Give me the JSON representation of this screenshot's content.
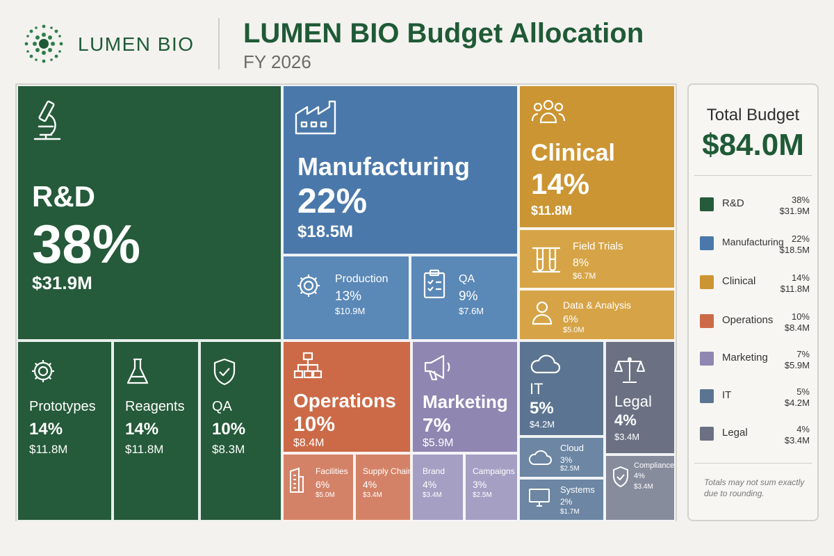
{
  "header": {
    "brand": "LUMEN BIO",
    "title": "LUMEN BIO Budget Allocation",
    "subtitle": "FY 2026"
  },
  "colors": {
    "rd": "#255a3a",
    "manufacturing": "#4a78aa",
    "clinical": "#cc9533",
    "operations": "#cc6a47",
    "marketing": "#8f86b2",
    "it": "#5b7491",
    "legal": "#6b7183",
    "brand_green": "#1f5a36"
  },
  "chart_data": {
    "type": "treemap",
    "title": "LUMEN BIO Budget Allocation",
    "subtitle": "FY 2026",
    "total": "$84.0M",
    "categories": [
      {
        "name": "R&D",
        "percent": 38,
        "amount": "$31.9M",
        "icon": "microscope-icon",
        "children": [
          {
            "name": "Prototypes",
            "percent": 14,
            "amount": "$11.8M",
            "icon": "gear-icon"
          },
          {
            "name": "Reagents",
            "percent": 14,
            "amount": "$11.8M",
            "icon": "flask-icon"
          },
          {
            "name": "QA",
            "percent": 10,
            "amount": "$8.3M",
            "icon": "shield-check-icon"
          }
        ]
      },
      {
        "name": "Manufacturing",
        "percent": 22,
        "amount": "$18.5M",
        "icon": "factory-icon",
        "children": [
          {
            "name": "Production",
            "percent": 13,
            "amount": "$10.9M",
            "icon": "gear-icon"
          },
          {
            "name": "QA",
            "percent": 9,
            "amount": "$7.6M",
            "icon": "clipboard-check-icon"
          }
        ]
      },
      {
        "name": "Clinical",
        "percent": 14,
        "amount": "$11.8M",
        "icon": "people-icon",
        "children": [
          {
            "name": "Field Trials",
            "percent": 8,
            "amount": "$6.7M",
            "icon": "test-tubes-icon"
          },
          {
            "name": "Data & Analysis",
            "percent": 6,
            "amount": "$5.0M",
            "icon": "person-icon"
          }
        ]
      },
      {
        "name": "Operations",
        "percent": 10,
        "amount": "$8.4M",
        "icon": "org-chart-icon",
        "children": [
          {
            "name": "Facilities",
            "percent": 6,
            "amount": "$5.0M",
            "icon": "building-icon"
          },
          {
            "name": "Supply Chain",
            "percent": 4,
            "amount": "$3.4M",
            "icon": ""
          }
        ]
      },
      {
        "name": "Marketing",
        "percent": 7,
        "amount": "$5.9M",
        "icon": "megaphone-icon",
        "children": [
          {
            "name": "Brand",
            "percent": 4,
            "amount": "$3.4M",
            "icon": ""
          },
          {
            "name": "Campaigns",
            "percent": 3,
            "amount": "$2.5M",
            "icon": ""
          }
        ]
      },
      {
        "name": "IT",
        "percent": 5,
        "amount": "$4.2M",
        "icon": "cloud-icon",
        "children": [
          {
            "name": "Cloud",
            "percent": 3,
            "amount": "$2.5M",
            "icon": "cloud-icon"
          },
          {
            "name": "Systems",
            "percent": 2,
            "amount": "$1.7M",
            "icon": "monitor-icon"
          }
        ]
      },
      {
        "name": "Legal",
        "percent": 4,
        "amount": "$3.4M",
        "icon": "scales-icon",
        "children": [
          {
            "name": "Compliance",
            "percent": 4,
            "amount": "$3.4M",
            "icon": "shield-check-icon"
          }
        ]
      }
    ]
  },
  "tiles": {
    "rd": {
      "label": "R&D",
      "pct": "38%",
      "amt": "$31.9M"
    },
    "prototypes": {
      "label": "Prototypes",
      "pct": "14%",
      "amt": "$11.8M"
    },
    "reagents": {
      "label": "Reagents",
      "pct": "14%",
      "amt": "$11.8M"
    },
    "rd_qa": {
      "label": "QA",
      "pct": "10%",
      "amt": "$8.3M"
    },
    "manufacturing": {
      "label": "Manufacturing",
      "pct": "22%",
      "amt": "$18.5M"
    },
    "production": {
      "label": "Production",
      "pct": "13%",
      "amt": "$10.9M"
    },
    "mfg_qa": {
      "label": "QA",
      "pct": "9%",
      "amt": "$7.6M"
    },
    "clinical": {
      "label": "Clinical",
      "pct": "14%",
      "amt": "$11.8M"
    },
    "field_trials": {
      "label": "Field Trials",
      "pct": "8%",
      "amt": "$6.7M"
    },
    "data_analysis": {
      "label": "Data & Analysis",
      "pct": "6%",
      "amt": "$5.0M"
    },
    "operations": {
      "label": "Operations",
      "pct": "10%",
      "amt": "$8.4M"
    },
    "facilities": {
      "label": "Facilities",
      "pct": "6%",
      "amt": "$5.0M"
    },
    "supply_chain": {
      "label": "Supply Chain",
      "pct": "4%",
      "amt": "$3.4M"
    },
    "marketing": {
      "label": "Marketing",
      "pct": "7%",
      "amt": "$5.9M"
    },
    "brand": {
      "label": "Brand",
      "pct": "4%",
      "amt": "$3.4M"
    },
    "campaigns": {
      "label": "Campaigns",
      "pct": "3%",
      "amt": "$2.5M"
    },
    "it": {
      "label": "IT",
      "pct": "5%",
      "amt": "$4.2M"
    },
    "cloud": {
      "label": "Cloud",
      "pct": "3%",
      "amt": "$2.5M"
    },
    "systems": {
      "label": "Systems",
      "pct": "2%",
      "amt": "$1.7M"
    },
    "legal": {
      "label": "Legal",
      "pct": "4%",
      "amt": "$3.4M"
    },
    "compliance": {
      "label": "Compliance",
      "pct": "4%",
      "amt": "$3.4M"
    }
  },
  "sidebar": {
    "title": "Total Budget",
    "total": "$84.0M",
    "legend": [
      {
        "name": "R&D",
        "pct": "38%",
        "amt": "$31.9M"
      },
      {
        "name": "Manufacturing",
        "pct": "22%",
        "amt": "$18.5M"
      },
      {
        "name": "Clinical",
        "pct": "14%",
        "amt": "$11.8M"
      },
      {
        "name": "Operations",
        "pct": "10%",
        "amt": "$8.4M"
      },
      {
        "name": "Marketing",
        "pct": "7%",
        "amt": "$5.9M"
      },
      {
        "name": "IT",
        "pct": "5%",
        "amt": "$4.2M"
      },
      {
        "name": "Legal",
        "pct": "4%",
        "amt": "$3.4M"
      }
    ],
    "note": "Totals may not sum exactly due to rounding."
  }
}
